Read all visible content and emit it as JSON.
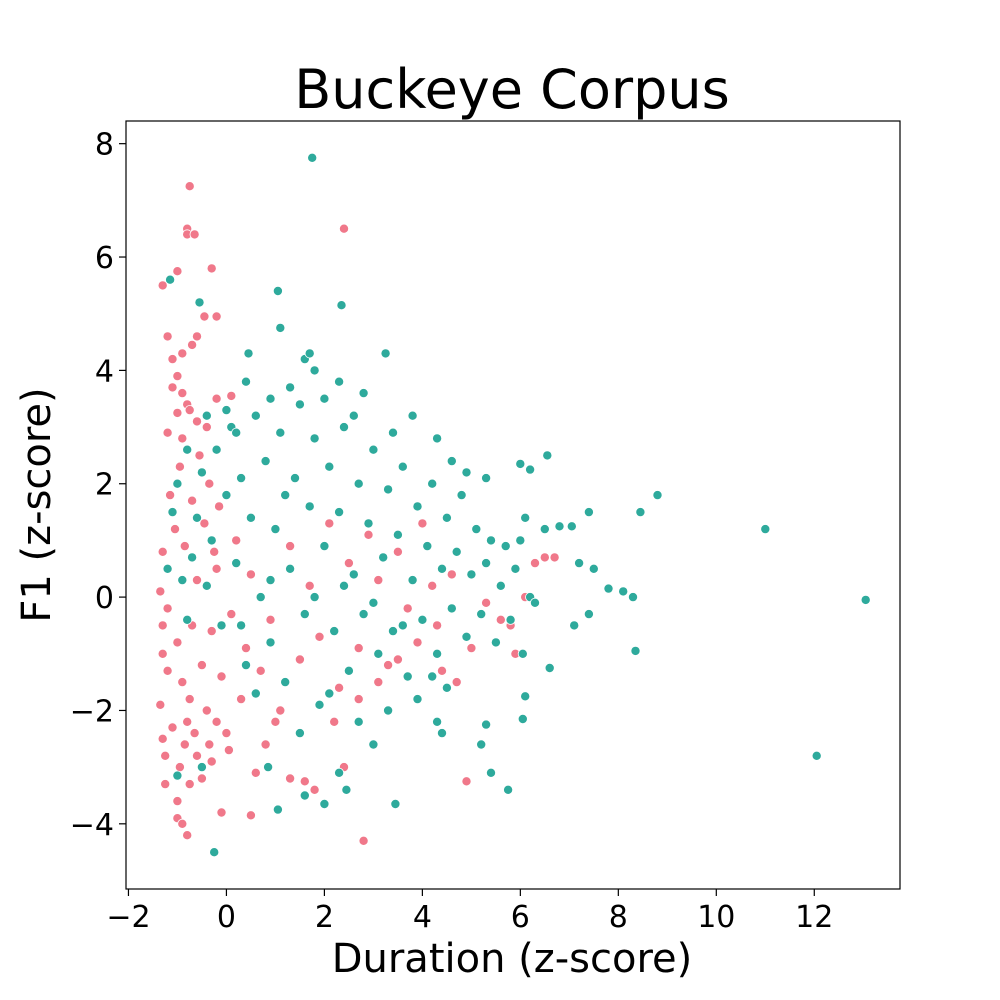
{
  "chart_data": {
    "type": "scatter",
    "title": "Buckeye Corpus",
    "xlabel": "Duration (z-score)",
    "ylabel": "F1 (z-score)",
    "xlim": [
      -2.05,
      13.75
    ],
    "ylim": [
      -5.15,
      8.4
    ],
    "xticks": [
      -2,
      0,
      2,
      4,
      6,
      8,
      10,
      12
    ],
    "yticks": [
      -4,
      -2,
      0,
      2,
      4,
      6,
      8
    ],
    "xtick_labels": [
      "−2",
      "0",
      "2",
      "4",
      "6",
      "8",
      "10",
      "12"
    ],
    "ytick_labels": [
      "−4",
      "−2",
      "0",
      "2",
      "4",
      "6",
      "8"
    ],
    "grid": false,
    "legend": false,
    "series": [
      {
        "color": "#f0788a",
        "points": [
          [
            -1.3,
            5.5
          ],
          [
            -1.1,
            4.2
          ],
          [
            -1.0,
            3.9
          ],
          [
            -0.9,
            4.3
          ],
          [
            -0.9,
            3.6
          ],
          [
            -0.8,
            3.4
          ],
          [
            -0.75,
            7.25
          ],
          [
            -0.8,
            6.5
          ],
          [
            -0.8,
            6.4
          ],
          [
            -0.65,
            6.4
          ],
          [
            -1.0,
            5.75
          ],
          [
            -0.3,
            5.8
          ],
          [
            -0.45,
            4.95
          ],
          [
            -0.2,
            4.95
          ],
          [
            -0.6,
            4.6
          ],
          [
            -0.7,
            4.45
          ],
          [
            -1.2,
            4.6
          ],
          [
            -1.1,
            3.7
          ],
          [
            -1.0,
            3.25
          ],
          [
            -0.75,
            3.3
          ],
          [
            -0.6,
            3.1
          ],
          [
            -0.4,
            3.0
          ],
          [
            -0.2,
            3.5
          ],
          [
            0.1,
            3.55
          ],
          [
            -0.9,
            2.8
          ],
          [
            -1.2,
            2.9
          ],
          [
            2.4,
            6.5
          ],
          [
            -1.3,
            0.8
          ],
          [
            -1.35,
            0.1
          ],
          [
            -1.3,
            -0.5
          ],
          [
            -1.2,
            -1.3
          ],
          [
            -1.35,
            -1.9
          ],
          [
            -1.3,
            -2.5
          ],
          [
            -1.25,
            -3.3
          ],
          [
            -1.0,
            -3.6
          ],
          [
            -1.0,
            -3.9
          ],
          [
            -0.9,
            -4.0
          ],
          [
            -0.8,
            -4.2
          ],
          [
            -0.75,
            -3.3
          ],
          [
            -0.6,
            -2.8
          ],
          [
            -0.3,
            -2.9
          ],
          [
            -0.1,
            -3.8
          ],
          [
            0.5,
            -3.85
          ],
          [
            0.6,
            -3.1
          ],
          [
            0.8,
            -2.6
          ],
          [
            1.0,
            -2.2
          ],
          [
            1.3,
            -3.2
          ],
          [
            1.6,
            -3.25
          ],
          [
            1.8,
            -3.4
          ],
          [
            2.4,
            -3.0
          ],
          [
            2.2,
            -2.2
          ],
          [
            2.8,
            -4.3
          ],
          [
            2.7,
            -1.8
          ],
          [
            3.1,
            -1.5
          ],
          [
            3.5,
            -1.1
          ],
          [
            3.9,
            -0.8
          ],
          [
            4.3,
            -0.5
          ],
          [
            4.9,
            -3.25
          ],
          [
            4.7,
            -1.5
          ],
          [
            5.0,
            -0.9
          ],
          [
            5.3,
            -0.1
          ],
          [
            5.6,
            -0.4
          ],
          [
            5.8,
            -0.5
          ],
          [
            5.9,
            -1.0
          ],
          [
            6.1,
            0.0
          ],
          [
            6.3,
            0.6
          ],
          [
            6.5,
            0.7
          ],
          [
            6.7,
            0.7
          ],
          [
            -1.3,
            -1.0
          ],
          [
            -1.2,
            -0.2
          ],
          [
            -1.0,
            -0.8
          ],
          [
            -0.9,
            -1.5
          ],
          [
            -0.8,
            -2.2
          ],
          [
            -0.7,
            -0.5
          ],
          [
            -0.6,
            0.3
          ],
          [
            -0.5,
            -1.2
          ],
          [
            -0.4,
            -2.0
          ],
          [
            -0.3,
            -0.6
          ],
          [
            -0.2,
            0.5
          ],
          [
            -0.1,
            -1.4
          ],
          [
            0.0,
            -2.4
          ],
          [
            0.1,
            -0.3
          ],
          [
            0.2,
            1.0
          ],
          [
            0.3,
            -1.8
          ],
          [
            0.4,
            -0.9
          ],
          [
            0.5,
            0.4
          ],
          [
            0.7,
            -1.3
          ],
          [
            0.9,
            -0.4
          ],
          [
            1.1,
            -2.0
          ],
          [
            1.3,
            0.9
          ],
          [
            1.5,
            -1.1
          ],
          [
            1.7,
            0.2
          ],
          [
            1.9,
            -0.7
          ],
          [
            2.1,
            1.3
          ],
          [
            2.3,
            -1.6
          ],
          [
            2.5,
            0.6
          ],
          [
            2.7,
            -0.9
          ],
          [
            2.9,
            1.1
          ],
          [
            3.1,
            0.3
          ],
          [
            3.3,
            -1.2
          ],
          [
            3.5,
            0.8
          ],
          [
            3.7,
            -0.2
          ],
          [
            4.0,
            1.3
          ],
          [
            4.2,
            0.2
          ],
          [
            4.4,
            -1.3
          ],
          [
            4.6,
            0.4
          ],
          [
            -1.15,
            1.8
          ],
          [
            -1.05,
            1.2
          ],
          [
            -0.95,
            2.3
          ],
          [
            -0.85,
            0.9
          ],
          [
            -0.7,
            1.7
          ],
          [
            -0.55,
            2.5
          ],
          [
            -0.45,
            1.3
          ],
          [
            -0.35,
            2.0
          ],
          [
            -0.25,
            0.8
          ],
          [
            -0.15,
            1.6
          ],
          [
            -1.25,
            -2.8
          ],
          [
            -1.1,
            -2.3
          ],
          [
            -0.95,
            -3.0
          ],
          [
            -0.85,
            -2.6
          ],
          [
            -0.75,
            -1.8
          ],
          [
            -0.65,
            -2.4
          ],
          [
            -0.5,
            -3.2
          ],
          [
            -0.35,
            -2.6
          ],
          [
            -0.2,
            -2.2
          ],
          [
            0.05,
            -2.7
          ]
        ]
      },
      {
        "color": "#2eaa9c",
        "points": [
          [
            1.75,
            7.75
          ],
          [
            -1.15,
            5.6
          ],
          [
            1.05,
            5.4
          ],
          [
            2.35,
            5.15
          ],
          [
            -0.55,
            5.2
          ],
          [
            1.1,
            4.75
          ],
          [
            0.45,
            4.3
          ],
          [
            1.6,
            4.2
          ],
          [
            1.7,
            4.3
          ],
          [
            3.25,
            4.3
          ],
          [
            1.8,
            4.0
          ],
          [
            2.3,
            3.8
          ],
          [
            2.8,
            3.6
          ],
          [
            3.8,
            3.2
          ],
          [
            4.3,
            2.8
          ],
          [
            4.6,
            2.4
          ],
          [
            4.9,
            2.2
          ],
          [
            5.3,
            2.1
          ],
          [
            6.0,
            2.35
          ],
          [
            6.2,
            2.25
          ],
          [
            6.55,
            2.5
          ],
          [
            8.8,
            1.8
          ],
          [
            8.45,
            1.5
          ],
          [
            7.4,
            1.5
          ],
          [
            7.05,
            1.25
          ],
          [
            6.8,
            1.25
          ],
          [
            6.5,
            1.2
          ],
          [
            6.1,
            1.4
          ],
          [
            11.0,
            1.2
          ],
          [
            13.05,
            -0.05
          ],
          [
            8.3,
            0.0
          ],
          [
            8.1,
            0.1
          ],
          [
            7.8,
            0.15
          ],
          [
            7.5,
            0.5
          ],
          [
            7.2,
            0.6
          ],
          [
            7.4,
            -0.3
          ],
          [
            7.1,
            -0.5
          ],
          [
            8.35,
            -0.95
          ],
          [
            6.6,
            -1.25
          ],
          [
            6.05,
            -1.0
          ],
          [
            6.1,
            -1.75
          ],
          [
            6.05,
            -2.15
          ],
          [
            5.75,
            -3.4
          ],
          [
            5.4,
            -3.1
          ],
          [
            5.2,
            -2.6
          ],
          [
            5.3,
            -2.25
          ],
          [
            4.3,
            -2.2
          ],
          [
            4.4,
            -2.4
          ],
          [
            3.45,
            -3.65
          ],
          [
            2.0,
            -3.65
          ],
          [
            2.45,
            -3.4
          ],
          [
            1.05,
            -3.75
          ],
          [
            -0.25,
            -4.5
          ],
          [
            12.05,
            -2.8
          ],
          [
            3.0,
            -2.6
          ],
          [
            2.3,
            -3.1
          ],
          [
            1.6,
            -3.5
          ],
          [
            0.85,
            -3.0
          ],
          [
            -0.5,
            -3.0
          ],
          [
            -1.0,
            -3.15
          ],
          [
            -1.2,
            0.5
          ],
          [
            -1.1,
            1.5
          ],
          [
            -1.0,
            2.0
          ],
          [
            -0.9,
            0.3
          ],
          [
            -0.8,
            -0.4
          ],
          [
            -0.7,
            0.7
          ],
          [
            -0.6,
            1.4
          ],
          [
            -0.5,
            2.2
          ],
          [
            -0.4,
            0.2
          ],
          [
            -0.3,
            1.0
          ],
          [
            -0.2,
            2.6
          ],
          [
            -0.1,
            -0.5
          ],
          [
            0.0,
            1.8
          ],
          [
            0.1,
            3.0
          ],
          [
            0.2,
            0.6
          ],
          [
            0.3,
            2.1
          ],
          [
            0.4,
            -1.2
          ],
          [
            0.5,
            1.4
          ],
          [
            0.6,
            3.2
          ],
          [
            0.7,
            0.0
          ],
          [
            0.8,
            2.4
          ],
          [
            0.9,
            -0.8
          ],
          [
            1.0,
            1.2
          ],
          [
            1.1,
            2.9
          ],
          [
            1.2,
            -1.5
          ],
          [
            1.3,
            0.5
          ],
          [
            1.4,
            2.1
          ],
          [
            1.5,
            3.4
          ],
          [
            1.6,
            -0.3
          ],
          [
            1.7,
            1.6
          ],
          [
            1.8,
            2.8
          ],
          [
            1.9,
            -1.9
          ],
          [
            2.0,
            0.9
          ],
          [
            2.1,
            2.3
          ],
          [
            2.2,
            -0.6
          ],
          [
            2.3,
            1.5
          ],
          [
            2.4,
            3.0
          ],
          [
            2.5,
            -1.3
          ],
          [
            2.6,
            0.4
          ],
          [
            2.7,
            2.0
          ],
          [
            2.8,
            -0.3
          ],
          [
            2.9,
            1.3
          ],
          [
            3.0,
            2.6
          ],
          [
            3.1,
            -1.0
          ],
          [
            3.2,
            0.7
          ],
          [
            3.3,
            1.9
          ],
          [
            3.4,
            -0.6
          ],
          [
            3.5,
            1.1
          ],
          [
            3.6,
            2.3
          ],
          [
            3.7,
            -1.4
          ],
          [
            3.8,
            0.3
          ],
          [
            3.9,
            1.6
          ],
          [
            4.0,
            -0.4
          ],
          [
            4.1,
            0.9
          ],
          [
            4.2,
            2.0
          ],
          [
            4.3,
            -1.0
          ],
          [
            4.4,
            0.5
          ],
          [
            4.5,
            1.4
          ],
          [
            4.6,
            -0.2
          ],
          [
            4.7,
            0.8
          ],
          [
            4.8,
            1.8
          ],
          [
            4.9,
            -0.7
          ],
          [
            5.0,
            0.4
          ],
          [
            5.1,
            1.2
          ],
          [
            5.2,
            -0.3
          ],
          [
            5.3,
            0.6
          ],
          [
            5.4,
            1.0
          ],
          [
            5.5,
            -0.8
          ],
          [
            5.6,
            0.2
          ],
          [
            5.7,
            0.9
          ],
          [
            5.8,
            -0.4
          ],
          [
            5.9,
            0.5
          ],
          [
            6.0,
            1.0
          ],
          [
            6.2,
            0.0
          ],
          [
            6.3,
            -0.1
          ],
          [
            0.3,
            -0.5
          ],
          [
            0.6,
            -1.7
          ],
          [
            0.9,
            0.3
          ],
          [
            1.2,
            1.8
          ],
          [
            1.5,
            -2.4
          ],
          [
            1.8,
            0.0
          ],
          [
            2.1,
            -1.7
          ],
          [
            2.4,
            0.2
          ],
          [
            2.7,
            -2.2
          ],
          [
            3.0,
            -0.1
          ],
          [
            3.3,
            -2.0
          ],
          [
            3.6,
            -0.5
          ],
          [
            3.9,
            -1.8
          ],
          [
            4.2,
            -1.4
          ],
          [
            4.5,
            -1.6
          ],
          [
            0.0,
            3.3
          ],
          [
            0.4,
            3.8
          ],
          [
            0.9,
            3.5
          ],
          [
            1.3,
            3.7
          ],
          [
            2.0,
            3.5
          ],
          [
            2.6,
            3.2
          ],
          [
            3.4,
            2.9
          ],
          [
            -0.4,
            3.2
          ],
          [
            -0.8,
            2.6
          ],
          [
            0.2,
            2.9
          ]
        ]
      }
    ]
  }
}
